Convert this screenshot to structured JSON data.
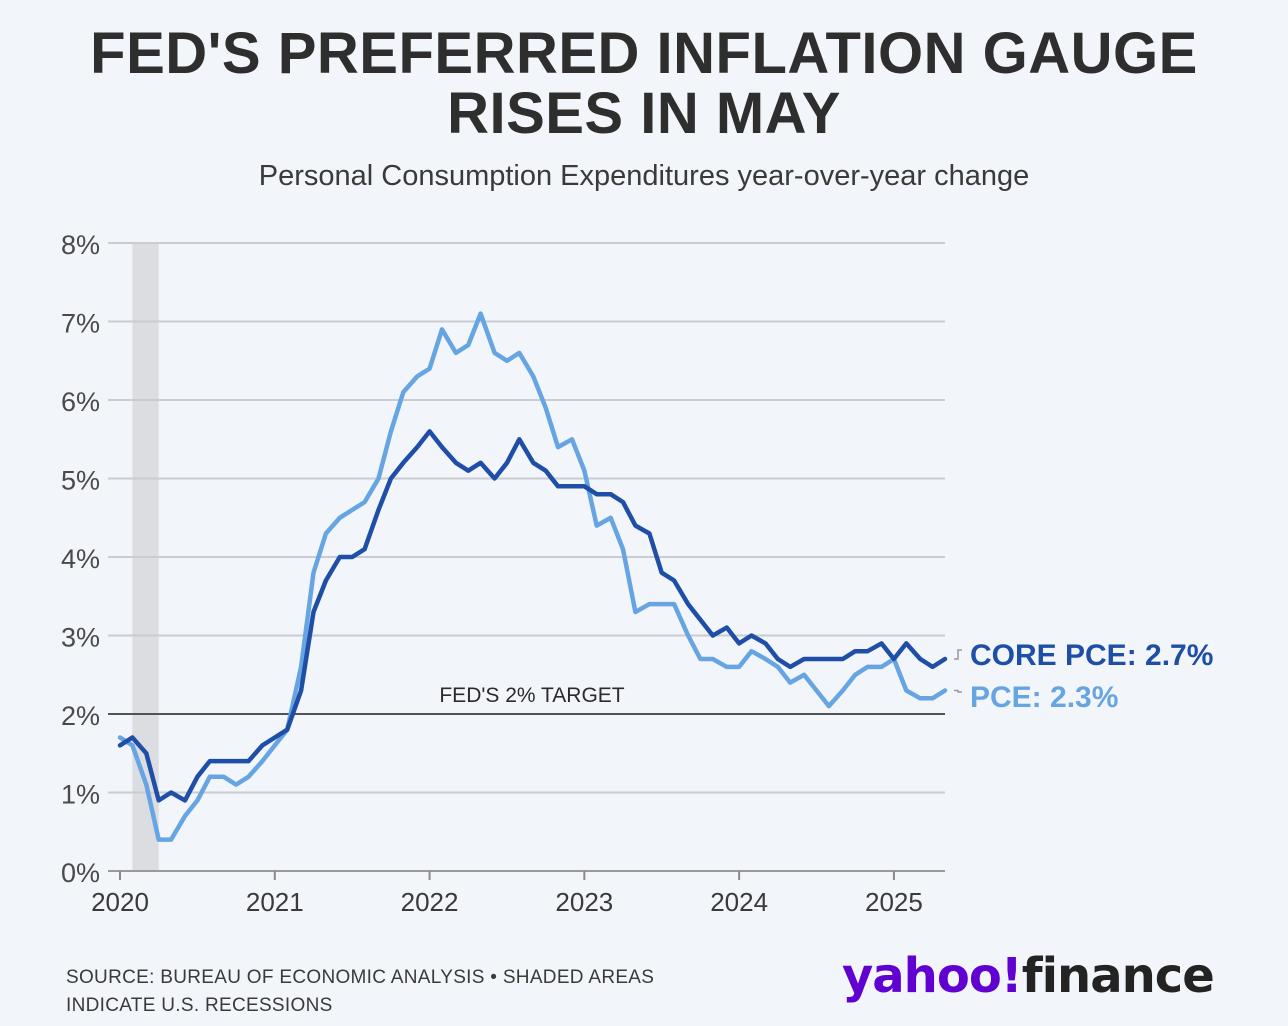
{
  "title_line1": "FED'S PREFERRED INFLATION GAUGE",
  "title_line2": "RISES IN MAY",
  "subtitle": "Personal Consumption Expenditures year-over-year change",
  "source_line1": "SOURCE: BUREAU OF ECONOMIC ANALYSIS • SHADED AREAS",
  "source_line2": "INDICATE U.S. RECESSIONS",
  "logo": {
    "brand": "yahoo!",
    "product": "finance"
  },
  "colors": {
    "core": "#1f4ea6",
    "pce": "#66a4e2",
    "grid": "#c9ccd1",
    "recession": "#dcdde1",
    "target": "#2b2b2b"
  },
  "chart_data": {
    "type": "line",
    "title": "FED'S PREFERRED INFLATION GAUGE RISES IN MAY",
    "subtitle": "Personal Consumption Expenditures year-over-year change",
    "xlim": [
      2020.0,
      2025.33
    ],
    "ylim": [
      0,
      8
    ],
    "y_ticks": [
      0,
      1,
      2,
      3,
      4,
      5,
      6,
      7,
      8
    ],
    "y_tick_labels": [
      "0%",
      "1%",
      "2%",
      "3%",
      "4%",
      "5%",
      "6%",
      "7%",
      "8%"
    ],
    "x_ticks": [
      2020,
      2021,
      2022,
      2023,
      2024,
      2025
    ],
    "x_tick_labels": [
      "2020",
      "2021",
      "2022",
      "2023",
      "2024",
      "2025"
    ],
    "grid": true,
    "recessions": [
      {
        "start": 2020.08,
        "end": 2020.25
      }
    ],
    "reference_line": {
      "value": 2,
      "label": "FED'S 2% TARGET"
    },
    "series": [
      {
        "name": "PCE",
        "label": "PCE: 2.3%",
        "x": [
          2020.0,
          2020.08,
          2020.17,
          2020.25,
          2020.33,
          2020.42,
          2020.5,
          2020.58,
          2020.67,
          2020.75,
          2020.83,
          2020.92,
          2021.0,
          2021.08,
          2021.17,
          2021.25,
          2021.33,
          2021.42,
          2021.5,
          2021.58,
          2021.67,
          2021.75,
          2021.83,
          2021.92,
          2022.0,
          2022.08,
          2022.17,
          2022.25,
          2022.33,
          2022.42,
          2022.5,
          2022.58,
          2022.67,
          2022.75,
          2022.83,
          2022.92,
          2023.0,
          2023.08,
          2023.17,
          2023.25,
          2023.33,
          2023.42,
          2023.5,
          2023.58,
          2023.67,
          2023.75,
          2023.83,
          2023.92,
          2024.0,
          2024.08,
          2024.17,
          2024.25,
          2024.33,
          2024.42,
          2024.5,
          2024.58,
          2024.67,
          2024.75,
          2024.83,
          2024.92,
          2025.0,
          2025.08,
          2025.17,
          2025.25,
          2025.33
        ],
        "values": [
          1.7,
          1.6,
          1.1,
          0.4,
          0.4,
          0.7,
          0.9,
          1.2,
          1.2,
          1.1,
          1.2,
          1.4,
          1.6,
          1.8,
          2.6,
          3.8,
          4.3,
          4.5,
          4.6,
          4.7,
          5.0,
          5.6,
          6.1,
          6.3,
          6.4,
          6.9,
          6.6,
          6.7,
          7.1,
          6.6,
          6.5,
          6.6,
          6.3,
          5.9,
          5.4,
          5.5,
          5.1,
          4.4,
          4.5,
          4.1,
          3.3,
          3.4,
          3.4,
          3.4,
          3.0,
          2.7,
          2.7,
          2.6,
          2.6,
          2.8,
          2.7,
          2.6,
          2.4,
          2.5,
          2.3,
          2.1,
          2.3,
          2.5,
          2.6,
          2.6,
          2.7,
          2.3,
          2.2,
          2.2,
          2.3
        ]
      },
      {
        "name": "Core PCE",
        "label": "CORE PCE: 2.7%",
        "x": [
          2020.0,
          2020.08,
          2020.17,
          2020.25,
          2020.33,
          2020.42,
          2020.5,
          2020.58,
          2020.67,
          2020.75,
          2020.83,
          2020.92,
          2021.0,
          2021.08,
          2021.17,
          2021.25,
          2021.33,
          2021.42,
          2021.5,
          2021.58,
          2021.67,
          2021.75,
          2021.83,
          2021.92,
          2022.0,
          2022.08,
          2022.17,
          2022.25,
          2022.33,
          2022.42,
          2022.5,
          2022.58,
          2022.67,
          2022.75,
          2022.83,
          2022.92,
          2023.0,
          2023.08,
          2023.17,
          2023.25,
          2023.33,
          2023.42,
          2023.5,
          2023.58,
          2023.67,
          2023.75,
          2023.83,
          2023.92,
          2024.0,
          2024.08,
          2024.17,
          2024.25,
          2024.33,
          2024.42,
          2024.5,
          2024.58,
          2024.67,
          2024.75,
          2024.83,
          2024.92,
          2025.0,
          2025.08,
          2025.17,
          2025.25,
          2025.33
        ],
        "values": [
          1.6,
          1.7,
          1.5,
          0.9,
          1.0,
          0.9,
          1.2,
          1.4,
          1.4,
          1.4,
          1.4,
          1.6,
          1.7,
          1.8,
          2.3,
          3.3,
          3.7,
          4.0,
          4.0,
          4.1,
          4.6,
          5.0,
          5.2,
          5.4,
          5.6,
          5.4,
          5.2,
          5.1,
          5.2,
          5.0,
          5.2,
          5.5,
          5.2,
          5.1,
          4.9,
          4.9,
          4.9,
          4.8,
          4.8,
          4.7,
          4.4,
          4.3,
          3.8,
          3.7,
          3.4,
          3.2,
          3.0,
          3.1,
          2.9,
          3.0,
          2.9,
          2.7,
          2.6,
          2.7,
          2.7,
          2.7,
          2.7,
          2.8,
          2.8,
          2.9,
          2.7,
          2.9,
          2.7,
          2.6,
          2.7
        ]
      }
    ]
  }
}
